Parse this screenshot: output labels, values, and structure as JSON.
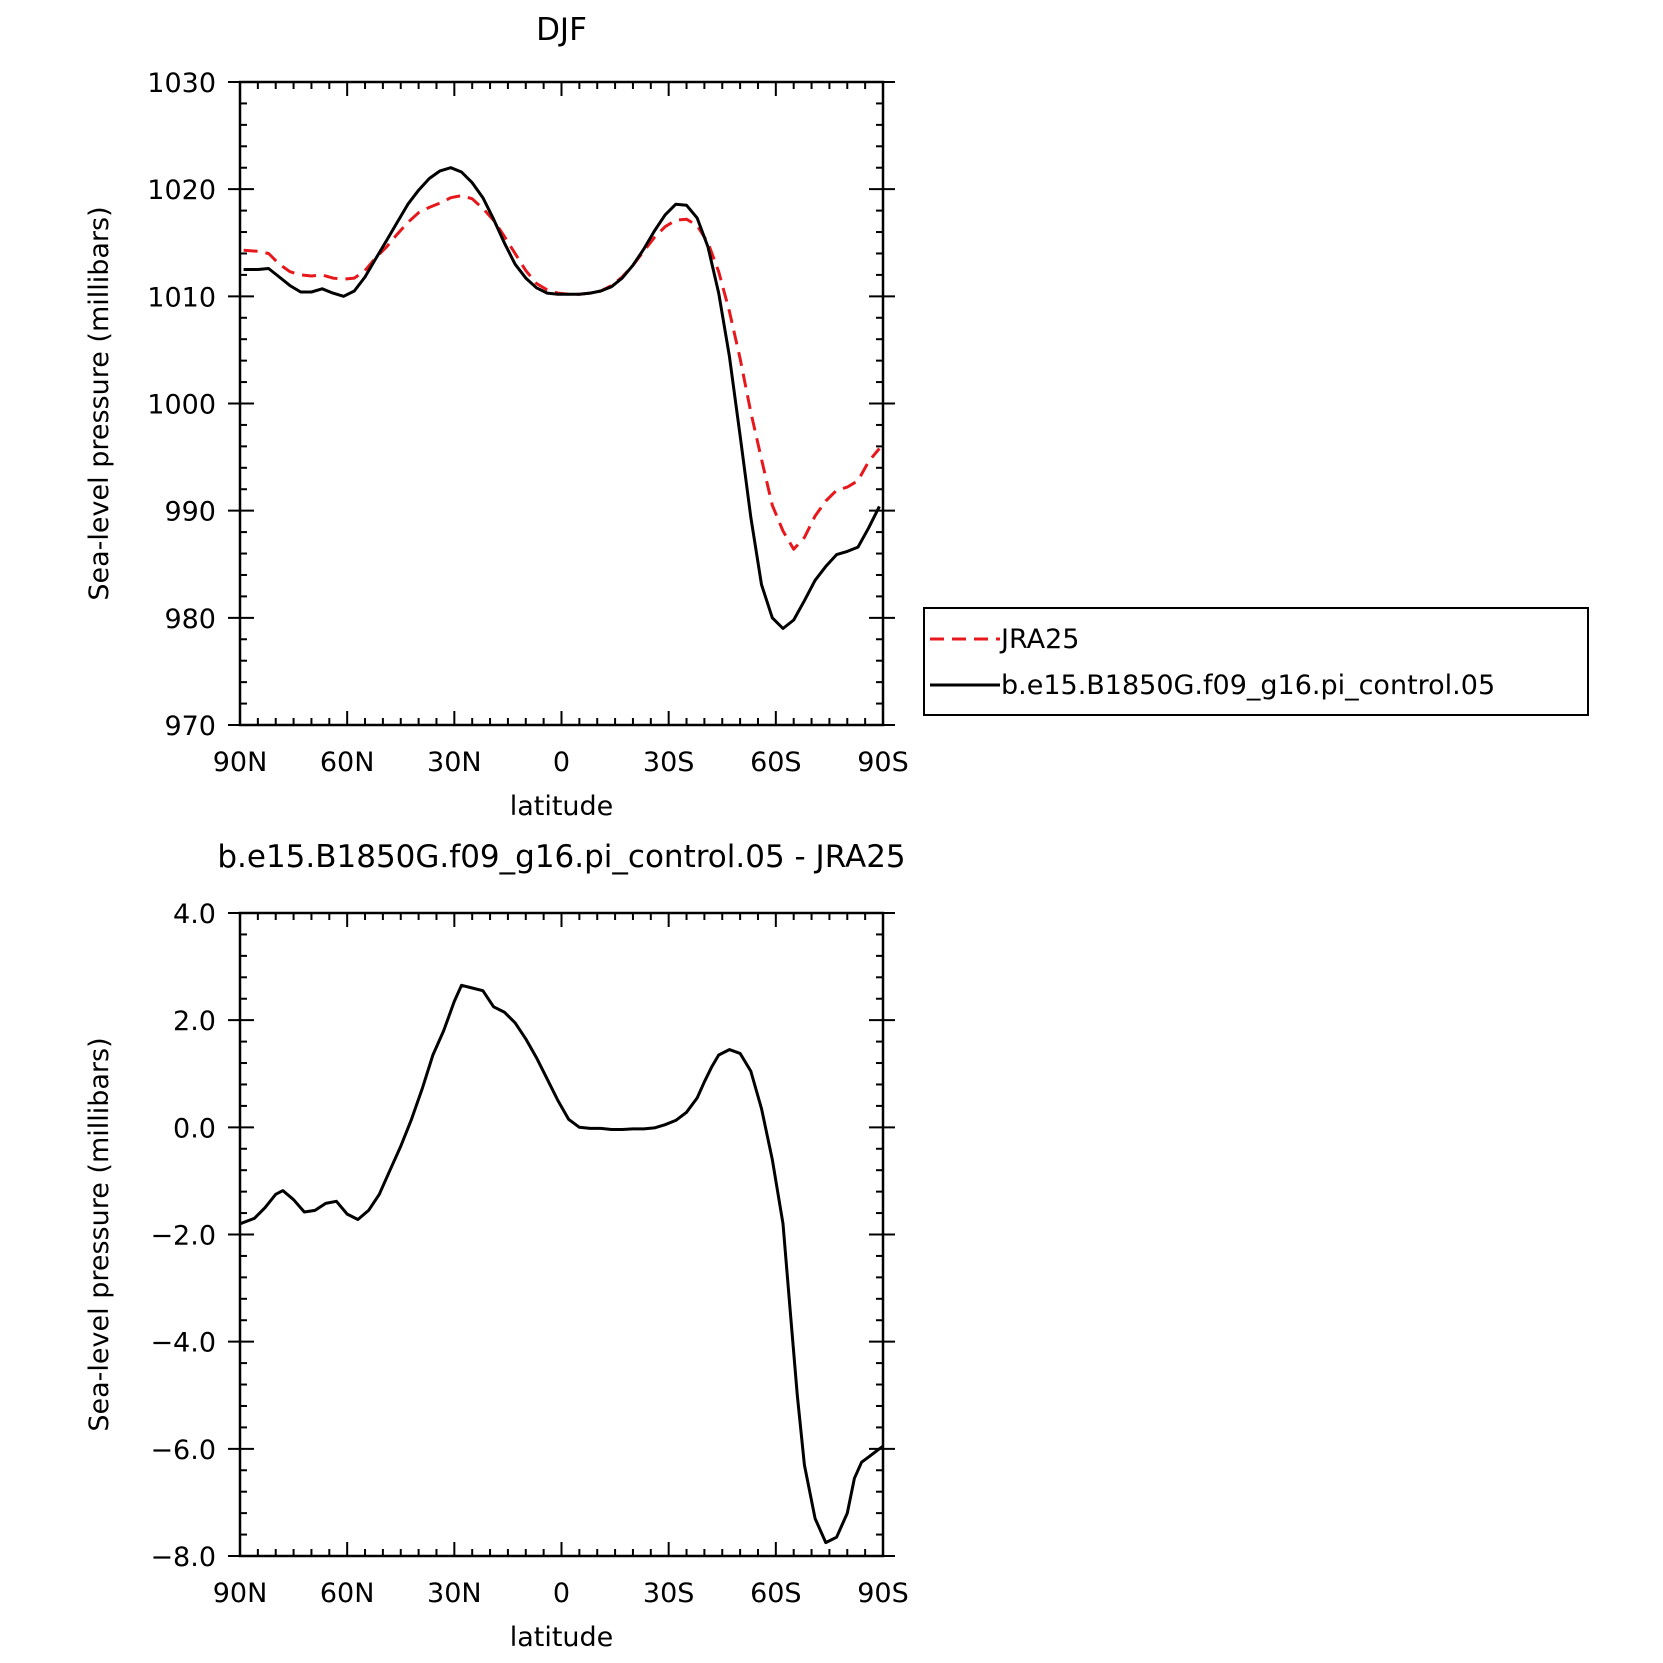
{
  "chart_data": [
    {
      "type": "line",
      "title": "DJF",
      "xlabel": "latitude",
      "ylabel": "Sea-level pressure (millibars)",
      "xlim": [
        90,
        -90
      ],
      "ylim": [
        970,
        1030
      ],
      "x_tick_values": [
        90,
        60,
        30,
        0,
        -30,
        -60,
        -90
      ],
      "x_tick_labels": [
        "90N",
        "60N",
        "30N",
        "0",
        "30S",
        "60S",
        "90S"
      ],
      "y_tick_values": [
        970,
        980,
        990,
        1000,
        1010,
        1020,
        1030
      ],
      "y_tick_labels": [
        "970",
        "980",
        "990",
        "1000",
        "1010",
        "1020",
        "1030"
      ],
      "legend": "right",
      "grid": false,
      "series": [
        {
          "name": "JRA25",
          "color": "#e8171b",
          "dashed": true,
          "x": [
            89,
            85,
            82,
            79,
            76,
            73,
            70,
            67,
            64,
            61,
            58,
            55,
            52,
            49,
            46,
            43,
            40,
            37,
            34,
            31,
            28,
            25,
            22,
            19,
            16,
            13,
            10,
            7,
            4,
            1,
            -2,
            -5,
            -8,
            -11,
            -14,
            -17,
            -20,
            -23,
            -26,
            -29,
            -32,
            -35,
            -38,
            -41,
            -44,
            -47,
            -50,
            -53,
            -56,
            -59,
            -62,
            -65,
            -68,
            -71,
            -74,
            -77,
            -80,
            -83,
            -86,
            -89
          ],
          "y": [
            1014.3,
            1014.2,
            1014.0,
            1013.0,
            1012.3,
            1012.0,
            1011.9,
            1012.0,
            1011.7,
            1011.6,
            1011.7,
            1012.4,
            1013.6,
            1014.6,
            1015.8,
            1016.9,
            1017.8,
            1018.3,
            1018.7,
            1019.2,
            1019.4,
            1019.1,
            1018.2,
            1017.1,
            1015.6,
            1014.0,
            1012.4,
            1011.2,
            1010.6,
            1010.3,
            1010.2,
            1010.2,
            1010.3,
            1010.5,
            1011.0,
            1011.8,
            1012.9,
            1014.2,
            1015.5,
            1016.5,
            1017.1,
            1017.2,
            1016.6,
            1015.0,
            1012.3,
            1008.6,
            1004.2,
            999.2,
            994.8,
            990.5,
            988.1,
            986.4,
            987.5,
            989.5,
            990.9,
            991.9,
            992.2,
            992.8,
            994.6,
            995.8
          ]
        },
        {
          "name": "b.e15.B1850G.f09_g16.pi_control.05",
          "color": "#000000",
          "dashed": false,
          "x": [
            89,
            85,
            82,
            79,
            76,
            73,
            70,
            67,
            64,
            61,
            58,
            55,
            52,
            49,
            46,
            43,
            40,
            37,
            34,
            31,
            28,
            25,
            22,
            19,
            16,
            13,
            10,
            7,
            4,
            1,
            -2,
            -5,
            -8,
            -11,
            -14,
            -17,
            -20,
            -23,
            -26,
            -29,
            -32,
            -35,
            -38,
            -41,
            -44,
            -47,
            -50,
            -53,
            -56,
            -59,
            -62,
            -65,
            -68,
            -71,
            -74,
            -77,
            -80,
            -83,
            -86,
            -89
          ],
          "y": [
            1012.5,
            1012.5,
            1012.6,
            1011.8,
            1011.0,
            1010.4,
            1010.4,
            1010.7,
            1010.3,
            1010.0,
            1010.5,
            1011.8,
            1013.5,
            1015.2,
            1016.9,
            1018.6,
            1019.9,
            1021.0,
            1021.7,
            1022.0,
            1021.6,
            1020.6,
            1019.2,
            1017.2,
            1015.0,
            1013.0,
            1011.7,
            1010.8,
            1010.3,
            1010.2,
            1010.2,
            1010.2,
            1010.3,
            1010.5,
            1010.9,
            1011.7,
            1012.9,
            1014.4,
            1016.1,
            1017.6,
            1018.6,
            1018.5,
            1017.3,
            1014.6,
            1010.3,
            1004.4,
            997.0,
            989.4,
            983.1,
            980.0,
            979.0,
            979.8,
            981.6,
            983.5,
            984.8,
            985.9,
            986.2,
            986.6,
            988.4,
            990.4
          ]
        }
      ]
    },
    {
      "type": "line",
      "title": "b.e15.B1850G.f09_g16.pi_control.05 - JRA25",
      "xlabel": "latitude",
      "ylabel": "Sea-level pressure (millibars)",
      "xlim": [
        90,
        -90
      ],
      "ylim": [
        -8.0,
        4.0
      ],
      "x_tick_values": [
        90,
        60,
        30,
        0,
        -30,
        -60,
        -90
      ],
      "x_tick_labels": [
        "90N",
        "60N",
        "30N",
        "0",
        "30S",
        "60S",
        "90S"
      ],
      "y_tick_values": [
        -8,
        -6,
        -4,
        -2,
        0,
        2,
        4
      ],
      "y_tick_labels": [
        "−8.0",
        "−6.0",
        "−4.0",
        "−2.0",
        "0.0",
        "2.0",
        "4.0"
      ],
      "legend": "none",
      "grid": false,
      "series": [
        {
          "color": "#000000",
          "dashed": false,
          "x": [
            90,
            86,
            83,
            80,
            78,
            75,
            72,
            69,
            66,
            63,
            60,
            57,
            54,
            51,
            48,
            45,
            42,
            39,
            36,
            33,
            30,
            28,
            25,
            22,
            19,
            16,
            13,
            10,
            7,
            4,
            1,
            -2,
            -5,
            -8,
            -11,
            -14,
            -17,
            -20,
            -23,
            -26,
            -29,
            -32,
            -35,
            -38,
            -40,
            -42,
            -44,
            -47,
            -50,
            -53,
            -56,
            -59,
            -62,
            -64,
            -66,
            -68,
            -71,
            -74,
            -77,
            -80,
            -82,
            -84,
            -86,
            -89,
            -90
          ],
          "y": [
            -1.8,
            -1.7,
            -1.5,
            -1.25,
            -1.18,
            -1.35,
            -1.58,
            -1.55,
            -1.42,
            -1.38,
            -1.62,
            -1.72,
            -1.55,
            -1.25,
            -0.8,
            -0.35,
            0.15,
            0.72,
            1.35,
            1.8,
            2.35,
            2.65,
            2.6,
            2.55,
            2.25,
            2.15,
            1.95,
            1.65,
            1.3,
            0.9,
            0.5,
            0.15,
            0.0,
            -0.02,
            -0.02,
            -0.04,
            -0.04,
            -0.03,
            -0.03,
            -0.01,
            0.05,
            0.13,
            0.28,
            0.55,
            0.85,
            1.12,
            1.35,
            1.45,
            1.38,
            1.05,
            0.35,
            -0.6,
            -1.8,
            -3.4,
            -5.0,
            -6.3,
            -7.3,
            -7.75,
            -7.65,
            -7.2,
            -6.55,
            -6.25,
            -6.15,
            -6.0,
            -5.95
          ]
        }
      ]
    }
  ]
}
